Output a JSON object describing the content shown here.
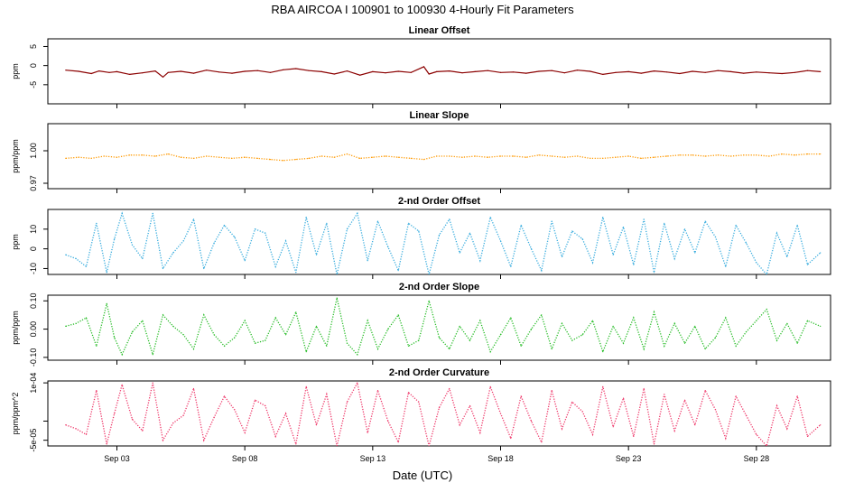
{
  "title": "RBA   AIRCOA I   100901 to 100930   4-Hourly Fit Parameters",
  "x_axis": {
    "label": "Date (UTC)",
    "ticks": [
      "Sep 03",
      "Sep 08",
      "Sep 13",
      "Sep 18",
      "Sep 23",
      "Sep 28"
    ],
    "tick_days": [
      3,
      8,
      13,
      18,
      23,
      28
    ],
    "range_days": [
      0.3,
      30.9
    ]
  },
  "chart_data": [
    {
      "type": "line",
      "title": "Linear Offset",
      "ylabel": "ppm",
      "ylim": [
        -10,
        7
      ],
      "yticks": [
        -5,
        0,
        5
      ],
      "ytick_labels": [
        "-5",
        "0",
        "5"
      ],
      "color": "#8b0000",
      "dotted": false,
      "x": [
        1.0,
        1.5,
        2.0,
        2.3,
        2.7,
        3.0,
        3.5,
        4.0,
        4.5,
        4.8,
        5.0,
        5.5,
        6.0,
        6.5,
        7.0,
        7.5,
        8.0,
        8.5,
        9.0,
        9.5,
        10.0,
        10.5,
        11.0,
        11.5,
        12.0,
        12.5,
        13.0,
        13.5,
        14.0,
        14.5,
        15.0,
        15.2,
        15.5,
        16.0,
        16.5,
        17.0,
        17.5,
        18.0,
        18.5,
        19.0,
        19.5,
        20.0,
        20.5,
        21.0,
        21.5,
        22.0,
        22.5,
        23.0,
        23.5,
        24.0,
        24.5,
        25.0,
        25.5,
        26.0,
        26.5,
        27.0,
        27.5,
        28.0,
        28.5,
        29.0,
        29.5,
        30.0,
        30.5
      ],
      "values": [
        -1.2,
        -1.5,
        -2.1,
        -1.4,
        -1.8,
        -1.6,
        -2.3,
        -1.9,
        -1.4,
        -3.0,
        -1.8,
        -1.5,
        -2.0,
        -1.2,
        -1.7,
        -2.0,
        -1.5,
        -1.3,
        -1.8,
        -1.1,
        -0.8,
        -1.3,
        -1.6,
        -2.2,
        -1.4,
        -2.5,
        -1.6,
        -1.9,
        -1.5,
        -1.8,
        -0.3,
        -2.2,
        -1.6,
        -1.4,
        -1.9,
        -1.6,
        -1.3,
        -1.8,
        -1.7,
        -2.0,
        -1.5,
        -1.3,
        -1.9,
        -1.2,
        -1.5,
        -2.3,
        -1.8,
        -1.6,
        -2.0,
        -1.4,
        -1.7,
        -2.1,
        -1.5,
        -1.8,
        -1.3,
        -1.6,
        -2.0,
        -1.7,
        -1.9,
        -2.1,
        -1.8,
        -1.3,
        -1.6
      ]
    },
    {
      "type": "line",
      "title": "Linear Slope",
      "ylabel": "ppm/ppm",
      "ylim": [
        0.965,
        1.025
      ],
      "yticks": [
        0.97,
        1.0
      ],
      "ytick_labels": [
        "0.97",
        "1.00"
      ],
      "color": "#ff9900",
      "dotted": true,
      "x": [
        1.0,
        1.5,
        2.0,
        2.5,
        3.0,
        3.5,
        4.0,
        4.5,
        5.0,
        5.5,
        6.0,
        6.5,
        7.0,
        7.5,
        8.0,
        8.5,
        9.0,
        9.5,
        10.0,
        10.5,
        11.0,
        11.5,
        12.0,
        12.5,
        13.0,
        13.5,
        14.0,
        14.5,
        15.0,
        15.5,
        16.0,
        16.5,
        17.0,
        17.5,
        18.0,
        18.5,
        19.0,
        19.5,
        20.0,
        20.5,
        21.0,
        21.5,
        22.0,
        22.5,
        23.0,
        23.5,
        24.0,
        24.5,
        25.0,
        25.5,
        26.0,
        26.5,
        27.0,
        27.5,
        28.0,
        28.5,
        29.0,
        29.5,
        30.0,
        30.5
      ],
      "values": [
        0.993,
        0.994,
        0.993,
        0.995,
        0.994,
        0.996,
        0.996,
        0.995,
        0.997,
        0.994,
        0.993,
        0.995,
        0.994,
        0.993,
        0.994,
        0.993,
        0.992,
        0.991,
        0.992,
        0.993,
        0.995,
        0.994,
        0.997,
        0.993,
        0.994,
        0.995,
        0.994,
        0.993,
        0.992,
        0.995,
        0.995,
        0.994,
        0.995,
        0.994,
        0.995,
        0.995,
        0.994,
        0.996,
        0.995,
        0.994,
        0.995,
        0.993,
        0.993,
        0.994,
        0.995,
        0.993,
        0.994,
        0.995,
        0.996,
        0.996,
        0.995,
        0.996,
        0.995,
        0.996,
        0.996,
        0.995,
        0.997,
        0.996,
        0.997,
        0.997
      ]
    },
    {
      "type": "line",
      "title": "2-nd Order Offset",
      "ylabel": "ppm",
      "ylim": [
        -13,
        20
      ],
      "yticks": [
        -10,
        0,
        10
      ],
      "ytick_labels": [
        "-10",
        "0",
        "10"
      ],
      "color": "#33aadd",
      "dotted": true,
      "x": [
        1.0,
        1.4,
        1.8,
        2.2,
        2.6,
        2.9,
        3.2,
        3.6,
        4.0,
        4.4,
        4.8,
        5.2,
        5.6,
        6.0,
        6.4,
        6.8,
        7.2,
        7.6,
        8.0,
        8.4,
        8.8,
        9.2,
        9.6,
        10.0,
        10.4,
        10.8,
        11.2,
        11.6,
        12.0,
        12.4,
        12.8,
        13.2,
        13.6,
        14.0,
        14.4,
        14.8,
        15.2,
        15.6,
        16.0,
        16.4,
        16.8,
        17.2,
        17.6,
        18.0,
        18.4,
        18.8,
        19.2,
        19.6,
        20.0,
        20.4,
        20.8,
        21.2,
        21.6,
        22.0,
        22.4,
        22.8,
        23.2,
        23.6,
        24.0,
        24.4,
        24.8,
        25.2,
        25.6,
        26.0,
        26.4,
        26.8,
        27.2,
        27.6,
        28.0,
        28.4,
        28.8,
        29.2,
        29.6,
        30.0,
        30.5
      ],
      "values": [
        -3,
        -5,
        -9,
        13,
        -12,
        5,
        18,
        2,
        -5,
        18,
        -10,
        -2,
        4,
        15,
        -10,
        3,
        12,
        6,
        -6,
        10,
        8,
        -9,
        4,
        -12,
        16,
        -3,
        13,
        -13,
        10,
        18,
        -6,
        14,
        1,
        -11,
        13,
        9,
        -13,
        7,
        15,
        -2,
        8,
        -6,
        16,
        4,
        -9,
        12,
        0,
        -11,
        14,
        -4,
        9,
        5,
        -7,
        16,
        -3,
        11,
        -8,
        15,
        -12,
        13,
        -5,
        10,
        -2,
        14,
        6,
        -9,
        12,
        3,
        -7,
        -13,
        8,
        -4,
        12,
        -8,
        -2
      ]
    },
    {
      "type": "line",
      "title": "2-nd Order Slope",
      "ylabel": "ppm/ppm",
      "ylim": [
        -0.11,
        0.12
      ],
      "yticks": [
        -0.1,
        0.0,
        0.1
      ],
      "ytick_labels": [
        "-0.10",
        "0.00",
        "0.10"
      ],
      "color": "#22bb22",
      "dotted": true,
      "x": [
        1.0,
        1.4,
        1.8,
        2.2,
        2.6,
        2.9,
        3.2,
        3.6,
        4.0,
        4.4,
        4.8,
        5.2,
        5.6,
        6.0,
        6.4,
        6.8,
        7.2,
        7.6,
        8.0,
        8.4,
        8.8,
        9.2,
        9.6,
        10.0,
        10.4,
        10.8,
        11.2,
        11.6,
        12.0,
        12.4,
        12.8,
        13.2,
        13.6,
        14.0,
        14.4,
        14.8,
        15.2,
        15.6,
        16.0,
        16.4,
        16.8,
        17.2,
        17.6,
        18.0,
        18.4,
        18.8,
        19.2,
        19.6,
        20.0,
        20.4,
        20.8,
        21.2,
        21.6,
        22.0,
        22.4,
        22.8,
        23.2,
        23.6,
        24.0,
        24.4,
        24.8,
        25.2,
        25.6,
        26.0,
        26.4,
        26.8,
        27.2,
        27.6,
        28.0,
        28.4,
        28.8,
        29.2,
        29.6,
        30.0,
        30.5
      ],
      "values": [
        0.01,
        0.02,
        0.04,
        -0.06,
        0.09,
        -0.03,
        -0.09,
        -0.01,
        0.03,
        -0.09,
        0.05,
        0.01,
        -0.02,
        -0.07,
        0.05,
        -0.02,
        -0.06,
        -0.03,
        0.03,
        -0.05,
        -0.04,
        0.04,
        -0.02,
        0.06,
        -0.08,
        0.01,
        -0.06,
        0.11,
        -0.05,
        -0.09,
        0.03,
        -0.07,
        0.0,
        0.05,
        -0.06,
        -0.04,
        0.1,
        -0.03,
        -0.07,
        0.01,
        -0.04,
        0.03,
        -0.08,
        -0.02,
        0.04,
        -0.06,
        0.0,
        0.05,
        -0.07,
        0.02,
        -0.04,
        -0.02,
        0.03,
        -0.08,
        0.01,
        -0.05,
        0.04,
        -0.07,
        0.06,
        -0.06,
        0.02,
        -0.05,
        0.01,
        -0.07,
        -0.03,
        0.04,
        -0.06,
        -0.01,
        0.03,
        0.07,
        -0.04,
        0.02,
        -0.05,
        0.03,
        0.01
      ]
    },
    {
      "type": "line",
      "title": "2-nd Order Curvature",
      "ylabel": "ppm/ppm^2",
      "ylim": [
        -6.5e-05,
        0.000105
      ],
      "yticks": [
        -5e-05,
        0,
        0.0001
      ],
      "ytick_labels": [
        "-5e-05",
        "",
        "1e-04"
      ],
      "color": "#ee3366",
      "dotted": true,
      "x": [
        1.0,
        1.4,
        1.8,
        2.2,
        2.6,
        2.9,
        3.2,
        3.6,
        4.0,
        4.4,
        4.8,
        5.2,
        5.6,
        6.0,
        6.4,
        6.8,
        7.2,
        7.6,
        8.0,
        8.4,
        8.8,
        9.2,
        9.6,
        10.0,
        10.4,
        10.8,
        11.2,
        11.6,
        12.0,
        12.4,
        12.8,
        13.2,
        13.6,
        14.0,
        14.4,
        14.8,
        15.2,
        15.6,
        16.0,
        16.4,
        16.8,
        17.2,
        17.6,
        18.0,
        18.4,
        18.8,
        19.2,
        19.6,
        20.0,
        20.4,
        20.8,
        21.2,
        21.6,
        22.0,
        22.4,
        22.8,
        23.2,
        23.6,
        24.0,
        24.4,
        24.8,
        25.2,
        25.6,
        26.0,
        26.4,
        26.8,
        27.2,
        27.6,
        28.0,
        28.4,
        28.8,
        29.2,
        29.6,
        30.0,
        30.5
      ],
      "values": [
        -1e-05,
        -2e-05,
        -3.5e-05,
        8e-05,
        -6e-05,
        2e-05,
        9.5e-05,
        5e-06,
        -2.5e-05,
        0.0001,
        -5e-05,
        -5e-06,
        1.5e-05,
        8.5e-05,
        -5e-05,
        1e-05,
        6.5e-05,
        3e-05,
        -3e-05,
        5.5e-05,
        4e-05,
        -4e-05,
        2e-05,
        -6e-05,
        9e-05,
        -1e-05,
        7e-05,
        -6.5e-05,
        5e-05,
        0.0001,
        -3e-05,
        8e-05,
        0.0,
        -5.5e-05,
        7.5e-05,
        5e-05,
        -6.5e-05,
        3.5e-05,
        8.5e-05,
        -1e-05,
        4e-05,
        -3e-05,
        9e-05,
        2e-05,
        -4.5e-05,
        6.5e-05,
        0.0,
        -5.5e-05,
        8e-05,
        -2e-05,
        5e-05,
        2.5e-05,
        -3.5e-05,
        9e-05,
        -1.5e-05,
        6e-05,
        -4e-05,
        8.5e-05,
        -6e-05,
        7e-05,
        -2.5e-05,
        5.5e-05,
        -1e-05,
        8e-05,
        3e-05,
        -4.5e-05,
        6.5e-05,
        1.5e-05,
        -3.5e-05,
        -6.5e-05,
        4e-05,
        -2e-05,
        6.5e-05,
        -4e-05,
        -1e-05
      ]
    }
  ]
}
